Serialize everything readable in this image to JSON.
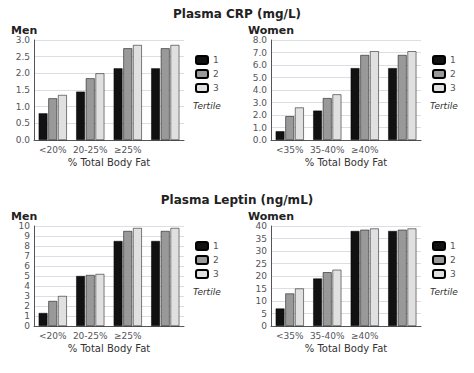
{
  "chart_data": [
    {
      "type": "bar",
      "title": "Plasma CRP (mg/L)",
      "subtitle": "Men",
      "categories": [
        "<20%",
        "20-25%",
        "≥25%",
        null
      ],
      "xlabel": "% Total Body Fat",
      "ylim": [
        0,
        3.0
      ],
      "yticks": [
        {
          "value": 0.0,
          "label": "0.0"
        },
        0.5,
        {
          "value": 1.0,
          "label": "1.0"
        },
        1.5,
        {
          "value": 2.0,
          "label": "2.0"
        },
        2.5,
        {
          "value": 3.0,
          "label": "3.0"
        }
      ],
      "series": [
        {
          "name": "1",
          "color": "#111111",
          "values": [
            0.8,
            1.45,
            2.15,
            2.15
          ]
        },
        {
          "name": "2",
          "color": "#999999",
          "values": [
            1.25,
            1.85,
            2.75,
            2.75
          ]
        },
        {
          "name": "3",
          "color": "#e0e0e0",
          "values": [
            1.35,
            2.0,
            2.85,
            2.85
          ]
        }
      ],
      "grid": true,
      "legend": "right",
      "annotations": [
        "Tertile"
      ]
    },
    {
      "type": "bar",
      "subtitle": "Women",
      "categories": [
        "<35%",
        "35-40%",
        "≥40%",
        null
      ],
      "xlabel": "% Total Body Fat",
      "ylim": [
        0,
        8.0
      ],
      "yticks": [
        {
          "value": 0.0,
          "label": "0.0"
        },
        {
          "value": 1.0,
          "label": "1.0"
        },
        {
          "value": 2.0,
          "label": "2.0"
        },
        {
          "value": 3.0,
          "label": "3.0"
        },
        {
          "value": 4.0,
          "label": "4.0"
        },
        {
          "value": 5.0,
          "label": "5.0"
        },
        {
          "value": 6.0,
          "label": "6.0"
        },
        {
          "value": 7.0,
          "label": "7.0"
        },
        {
          "value": 8.0,
          "label": "8.0"
        }
      ],
      "series": [
        {
          "name": "1",
          "color": "#111111",
          "values": [
            0.7,
            2.35,
            5.75,
            5.75
          ]
        },
        {
          "name": "2",
          "color": "#999999",
          "values": [
            1.9,
            3.35,
            6.8,
            6.8
          ]
        },
        {
          "name": "3",
          "color": "#e0e0e0",
          "values": [
            2.6,
            3.65,
            7.1,
            7.1
          ]
        }
      ],
      "grid": true,
      "legend": "right",
      "annotations": [
        "Tertile"
      ]
    },
    {
      "type": "bar",
      "title": "Plasma Leptin (ng/mL)",
      "subtitle": "Men",
      "categories": [
        "<20%",
        "20-25%",
        "≥25%",
        null
      ],
      "xlabel": "% Total Body Fat",
      "ylim": [
        0,
        10
      ],
      "yticks": [
        0,
        1,
        2,
        3,
        4,
        5,
        6,
        7,
        8,
        9,
        10
      ],
      "series": [
        {
          "name": "1",
          "color": "#111111",
          "values": [
            1.3,
            5.0,
            8.5,
            8.5
          ]
        },
        {
          "name": "2",
          "color": "#999999",
          "values": [
            2.5,
            5.1,
            9.5,
            9.5
          ]
        },
        {
          "name": "3",
          "color": "#e0e0e0",
          "values": [
            3.0,
            5.2,
            9.8,
            9.8
          ]
        }
      ],
      "grid": true,
      "legend": "right",
      "annotations": [
        "Tertile"
      ]
    },
    {
      "type": "bar",
      "subtitle": "Women",
      "categories": [
        "<35%",
        "35-40%",
        "≥40%",
        null
      ],
      "xlabel": "% Total Body Fat",
      "ylim": [
        0,
        40
      ],
      "yticks": [
        0,
        5,
        10,
        15,
        20,
        25,
        30,
        35,
        40
      ],
      "series": [
        {
          "name": "1",
          "color": "#111111",
          "values": [
            7.0,
            19.0,
            38.0,
            38.0
          ]
        },
        {
          "name": "2",
          "color": "#999999",
          "values": [
            13.0,
            21.5,
            38.5,
            38.5
          ]
        },
        {
          "name": "3",
          "color": "#e0e0e0",
          "values": [
            15.0,
            22.5,
            39.0,
            39.0
          ]
        }
      ],
      "grid": true,
      "legend": "right",
      "annotations": [
        "Tertile"
      ]
    }
  ]
}
